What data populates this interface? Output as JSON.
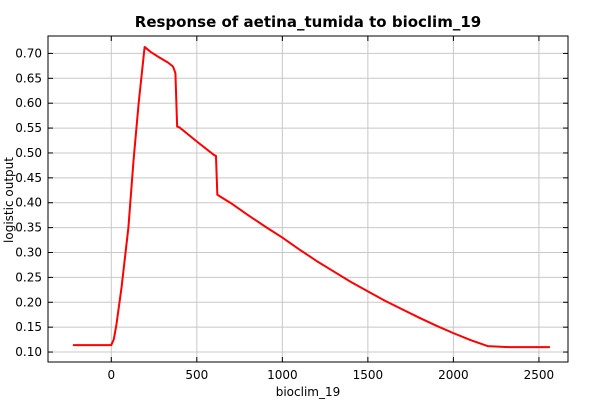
{
  "chart_data": {
    "type": "line",
    "title": "Response of aetina_tumida to bioclim_19",
    "xlabel": "bioclim_19",
    "ylabel": "logistic output",
    "xlim": [
      -370,
      2670
    ],
    "ylim": [
      0.08,
      0.735
    ],
    "x_ticks": [
      0,
      500,
      1000,
      1500,
      2000,
      2500
    ],
    "y_ticks": [
      0.1,
      0.15,
      0.2,
      0.25,
      0.3,
      0.35,
      0.4,
      0.45,
      0.5,
      0.55,
      0.6,
      0.65,
      0.7
    ],
    "grid": true,
    "legend": "none",
    "series": [
      {
        "color": "#ff0000",
        "x": [
          -220,
          0,
          15,
          30,
          60,
          100,
          130,
          160,
          195,
          230,
          280,
          330,
          360,
          365,
          375,
          385,
          400,
          500,
          600,
          612,
          620,
          700,
          800,
          900,
          1000,
          1100,
          1200,
          1300,
          1400,
          1500,
          1600,
          1700,
          1800,
          1900,
          2000,
          2100,
          2200,
          2320,
          2560
        ],
        "y": [
          0.114,
          0.114,
          0.126,
          0.155,
          0.23,
          0.35,
          0.485,
          0.6,
          0.713,
          0.703,
          0.692,
          0.682,
          0.674,
          0.67,
          0.66,
          0.553,
          0.551,
          0.523,
          0.496,
          0.494,
          0.416,
          0.399,
          0.375,
          0.352,
          0.33,
          0.306,
          0.283,
          0.262,
          0.241,
          0.222,
          0.203,
          0.186,
          0.169,
          0.153,
          0.138,
          0.124,
          0.112,
          0.11,
          0.11
        ]
      }
    ]
  }
}
